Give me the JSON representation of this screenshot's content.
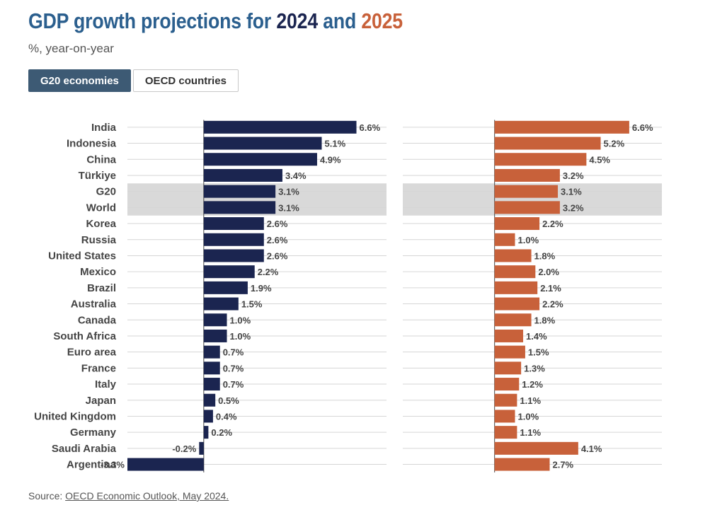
{
  "header": {
    "title_parts": [
      "GDP growth projections for ",
      "2024",
      " and ",
      "2025"
    ],
    "subtitle": "%, year-on-year"
  },
  "tabs": [
    {
      "label": "G20 economies",
      "active": true
    },
    {
      "label": "OECD countries",
      "active": false
    }
  ],
  "source": {
    "prefix": "Source: ",
    "link": "OECD Economic Outlook, May 2024."
  },
  "colors": {
    "title": "#2b5f8e",
    "series_2024": "#1b2550",
    "series_2025": "#c8613a",
    "highlight_band": "#d9d9d9",
    "tab_active": "#3d5a74"
  },
  "chart_data": {
    "type": "bar",
    "orientation": "horizontal",
    "categories": [
      "India",
      "Indonesia",
      "China",
      "Türkiye",
      "G20",
      "World",
      "Korea",
      "Russia",
      "United States",
      "Mexico",
      "Brazil",
      "Australia",
      "Canada",
      "South Africa",
      "Euro area",
      "France",
      "Italy",
      "Japan",
      "United Kingdom",
      "Germany",
      "Saudi Arabia",
      "Argentina"
    ],
    "highlighted_categories": [
      "G20",
      "World"
    ],
    "value_suffix": "%",
    "series": [
      {
        "name": "2024",
        "color": "#1b2550",
        "values": [
          6.6,
          5.1,
          4.9,
          3.4,
          3.1,
          3.1,
          2.6,
          2.6,
          2.6,
          2.2,
          1.9,
          1.5,
          1.0,
          1.0,
          0.7,
          0.7,
          0.7,
          0.5,
          0.4,
          0.2,
          -0.2,
          -3.3
        ],
        "xlim": [
          -3.3,
          7.9
        ]
      },
      {
        "name": "2025",
        "color": "#c8613a",
        "values": [
          6.6,
          5.2,
          4.5,
          3.2,
          3.1,
          3.2,
          2.2,
          1.0,
          1.8,
          2.0,
          2.1,
          2.2,
          1.8,
          1.4,
          1.5,
          1.3,
          1.2,
          1.1,
          1.0,
          1.1,
          4.1,
          2.7
        ],
        "xlim": [
          -4.5,
          8.2
        ]
      }
    ],
    "grid": true,
    "legend": "none"
  }
}
